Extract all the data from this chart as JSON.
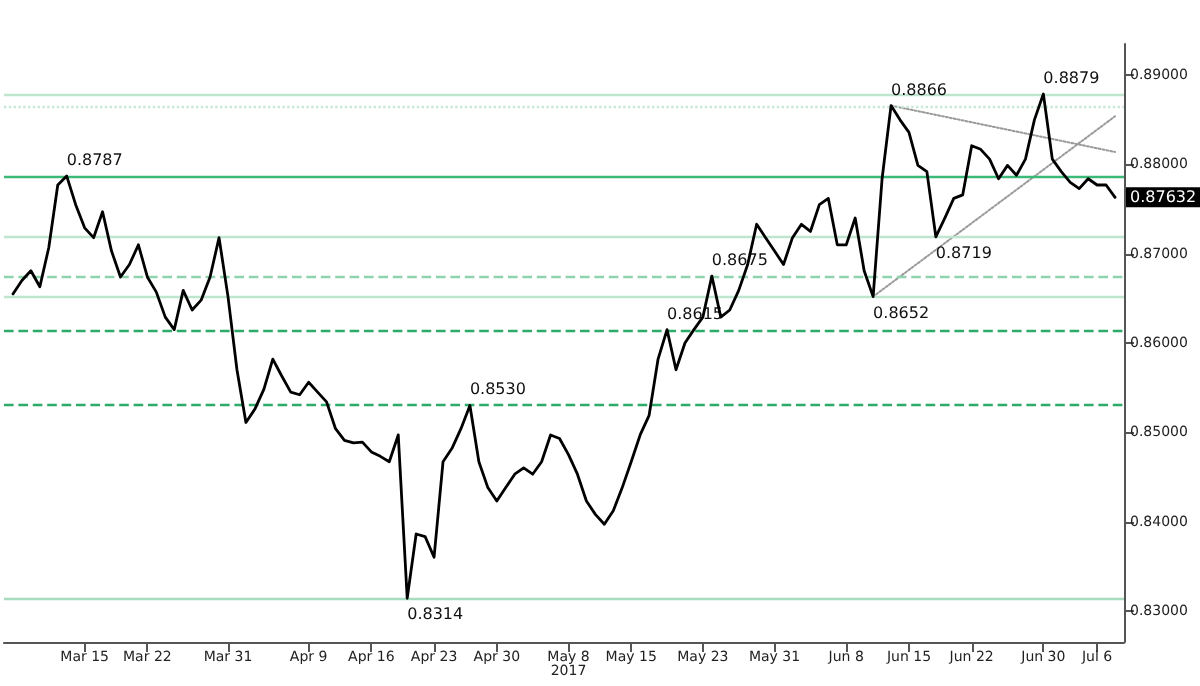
{
  "chart_data": {
    "type": "line",
    "x": [
      "2017-03-07",
      "2017-03-08",
      "2017-03-09",
      "2017-03-10",
      "2017-03-11",
      "2017-03-12",
      "2017-03-13",
      "2017-03-14",
      "2017-03-15",
      "2017-03-16",
      "2017-03-17",
      "2017-03-18",
      "2017-03-19",
      "2017-03-20",
      "2017-03-21",
      "2017-03-22",
      "2017-03-23",
      "2017-03-24",
      "2017-03-25",
      "2017-03-26",
      "2017-03-27",
      "2017-03-28",
      "2017-03-29",
      "2017-03-30",
      "2017-03-31",
      "2017-04-01",
      "2017-04-02",
      "2017-04-03",
      "2017-04-04",
      "2017-04-05",
      "2017-04-06",
      "2017-04-07",
      "2017-04-08",
      "2017-04-09",
      "2017-04-10",
      "2017-04-11",
      "2017-04-12",
      "2017-04-13",
      "2017-04-14",
      "2017-04-15",
      "2017-04-16",
      "2017-04-17",
      "2017-04-18",
      "2017-04-19",
      "2017-04-20",
      "2017-04-21",
      "2017-04-22",
      "2017-04-23",
      "2017-04-24",
      "2017-04-25",
      "2017-04-26",
      "2017-04-27",
      "2017-04-28",
      "2017-04-29",
      "2017-04-30",
      "2017-05-01",
      "2017-05-02",
      "2017-05-03",
      "2017-05-04",
      "2017-05-05",
      "2017-05-06",
      "2017-05-07",
      "2017-05-08",
      "2017-05-09",
      "2017-05-10",
      "2017-05-11",
      "2017-05-12",
      "2017-05-13",
      "2017-05-14",
      "2017-05-15",
      "2017-05-16",
      "2017-05-17",
      "2017-05-18",
      "2017-05-19",
      "2017-05-20",
      "2017-05-21",
      "2017-05-22",
      "2017-05-23",
      "2017-05-24",
      "2017-05-25",
      "2017-05-26",
      "2017-05-27",
      "2017-05-28",
      "2017-05-29",
      "2017-05-30",
      "2017-05-31",
      "2017-06-01",
      "2017-06-02",
      "2017-06-03",
      "2017-06-04",
      "2017-06-05",
      "2017-06-06",
      "2017-06-07",
      "2017-06-08",
      "2017-06-09",
      "2017-06-10",
      "2017-06-11",
      "2017-06-12",
      "2017-06-13",
      "2017-06-14",
      "2017-06-15",
      "2017-06-16",
      "2017-06-17",
      "2017-06-18",
      "2017-06-19",
      "2017-06-20",
      "2017-06-21",
      "2017-06-22",
      "2017-06-23",
      "2017-06-24",
      "2017-06-25",
      "2017-06-26",
      "2017-06-27",
      "2017-06-28",
      "2017-06-29",
      "2017-06-30",
      "2017-07-01",
      "2017-07-02",
      "2017-07-03",
      "2017-07-04",
      "2017-07-05",
      "2017-07-06",
      "2017-07-07",
      "2017-07-08"
    ],
    "series": [
      {
        "color": "#000000",
        "values": [
          0.8655,
          0.867,
          0.8681,
          0.8663,
          0.8707,
          0.8777,
          0.8787,
          0.8755,
          0.8729,
          0.8718,
          0.8747,
          0.8703,
          0.8674,
          0.8688,
          0.871,
          0.8674,
          0.8657,
          0.8629,
          0.8615,
          0.8659,
          0.8637,
          0.8648,
          0.8674,
          0.8718,
          0.8652,
          0.857,
          0.8511,
          0.8526,
          0.8548,
          0.8582,
          0.8563,
          0.8545,
          0.8542,
          0.8556,
          0.8545,
          0.8534,
          0.8504,
          0.8491,
          0.8488,
          0.8489,
          0.8478,
          0.8473,
          0.8467,
          0.8497,
          0.8314,
          0.8386,
          0.8383,
          0.836,
          0.8467,
          0.8482,
          0.8504,
          0.853,
          0.8467,
          0.8438,
          0.8423,
          0.8438,
          0.8453,
          0.846,
          0.8453,
          0.8467,
          0.8497,
          0.8493,
          0.8475,
          0.8453,
          0.8423,
          0.8408,
          0.8397,
          0.8412,
          0.8438,
          0.8467,
          0.8497,
          0.8519,
          0.8582,
          0.8615,
          0.857,
          0.86,
          0.8615,
          0.8629,
          0.8675,
          0.8629,
          0.8637,
          0.8659,
          0.8688,
          0.8733,
          0.8718,
          0.8703,
          0.8688,
          0.8718,
          0.8733,
          0.8725,
          0.8755,
          0.8762,
          0.871,
          0.871,
          0.874,
          0.8681,
          0.8652,
          0.8784,
          0.8866,
          0.885,
          0.8836,
          0.8799,
          0.8792,
          0.8719,
          0.874,
          0.8762,
          0.8766,
          0.8821,
          0.8817,
          0.8806,
          0.8784,
          0.8799,
          0.8788,
          0.8806,
          0.885,
          0.8879,
          0.8806,
          0.8792,
          0.878,
          0.8773,
          0.8784,
          0.8777,
          0.8777,
          0.87632
        ]
      },
      {
        "type": "line",
        "color": "#999999",
        "line_style": "dotted",
        "x": [
          "2017-06-11",
          "2017-07-08"
        ],
        "values": [
          0.8652,
          0.8854
        ]
      },
      {
        "type": "line",
        "color": "#999999",
        "line_style": "dotted",
        "x": [
          "2017-06-13",
          "2017-07-08"
        ],
        "values": [
          0.8866,
          0.8814
        ]
      }
    ],
    "xlim": [
      "2017-03-06",
      "2017-07-09"
    ],
    "xticks": [
      {
        "value": "2017-03-15",
        "label": "Mar 15"
      },
      {
        "value": "2017-03-22",
        "label": "Mar 22"
      },
      {
        "value": "2017-03-31",
        "label": "Mar 31"
      },
      {
        "value": "2017-04-09",
        "label": "Apr 9"
      },
      {
        "value": "2017-04-16",
        "label": "Apr 16"
      },
      {
        "value": "2017-04-23",
        "label": "Apr 23"
      },
      {
        "value": "2017-04-30",
        "label": "Apr 30"
      },
      {
        "value": "2017-05-08",
        "label": "May 8\n2017"
      },
      {
        "value": "2017-05-15",
        "label": "May 15"
      },
      {
        "value": "2017-05-23",
        "label": "May 23"
      },
      {
        "value": "2017-05-31",
        "label": "May 31"
      },
      {
        "value": "2017-06-08",
        "label": "Jun 8"
      },
      {
        "value": "2017-06-15",
        "label": "Jun 15"
      },
      {
        "value": "2017-06-22",
        "label": "Jun 22"
      },
      {
        "value": "2017-06-30",
        "label": "Jun 30"
      },
      {
        "value": "2017-07-06",
        "label": "Jul 6"
      }
    ],
    "ylim": [
      0.8265,
      0.8935
    ],
    "yticks": [
      {
        "value": 0.83,
        "label": "0.83000"
      },
      {
        "value": 0.84,
        "label": "0.84000"
      },
      {
        "value": 0.85,
        "label": "0.85000"
      },
      {
        "value": 0.86,
        "label": "0.86000"
      },
      {
        "value": 0.87,
        "label": "0.87000"
      },
      {
        "value": 0.88,
        "label": "0.88000"
      },
      {
        "value": 0.89,
        "label": "0.89000"
      }
    ],
    "ref_lines": [
      {
        "axis": "y",
        "value": 0.8787,
        "color": "#3cb878",
        "line_style": "solid"
      },
      {
        "axis": "y",
        "value": 0.853,
        "color": "#2eaa6a",
        "line_style": "dashed"
      },
      {
        "axis": "y",
        "value": 0.8314,
        "color": "#a8dcc0",
        "line_style": "solid"
      },
      {
        "axis": "y",
        "value": 0.8615,
        "color": "#2eaa6a",
        "line_style": "dashed"
      },
      {
        "axis": "y",
        "value": 0.8675,
        "color": "#8fd3ae",
        "line_style": "dashed"
      },
      {
        "axis": "y",
        "value": 0.8652,
        "color": "#bfe5cf",
        "line_style": "solid"
      },
      {
        "axis": "y",
        "value": 0.8719,
        "color": "#bfe5cf",
        "line_style": "solid"
      },
      {
        "axis": "y",
        "value": 0.8866,
        "color": "#c8e8d5",
        "line_style": "dotted"
      },
      {
        "axis": "y",
        "value": 0.8879,
        "color": "#bfe5cf",
        "line_style": "solid"
      }
    ],
    "annotations": [
      {
        "text": "0.8787",
        "x": "2017-03-13",
        "y": 0.8787
      },
      {
        "text": "0.8314",
        "x": "2017-04-20",
        "y": 0.8314
      },
      {
        "text": "0.8530",
        "x": "2017-04-27",
        "y": 0.853
      },
      {
        "text": "0.8615",
        "x": "2017-05-19",
        "y": 0.8615
      },
      {
        "text": "0.8675",
        "x": "2017-05-24",
        "y": 0.8675
      },
      {
        "text": "0.8652",
        "x": "2017-06-11",
        "y": 0.8652
      },
      {
        "text": "0.8866",
        "x": "2017-06-13",
        "y": 0.8866
      },
      {
        "text": "0.8719",
        "x": "2017-06-18",
        "y": 0.8719
      },
      {
        "text": "0.8879",
        "x": "2017-06-30",
        "y": 0.8879
      },
      "0.87632"
    ],
    "grid": false,
    "marker": "none",
    "line_style": "solid"
  }
}
